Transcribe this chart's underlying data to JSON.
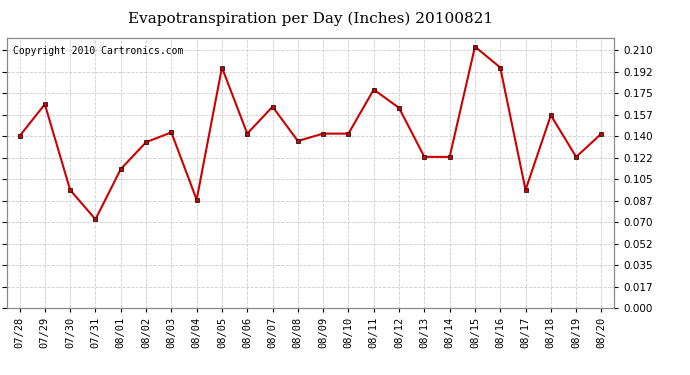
{
  "title": "Evapotranspiration per Day (Inches) 20100821",
  "copyright_text": "Copyright 2010 Cartronics.com",
  "x_labels": [
    "07/28",
    "07/29",
    "07/30",
    "07/31",
    "08/01",
    "08/02",
    "08/03",
    "08/04",
    "08/05",
    "08/06",
    "08/07",
    "08/08",
    "08/09",
    "08/10",
    "08/11",
    "08/12",
    "08/13",
    "08/14",
    "08/15",
    "08/16",
    "08/17",
    "08/18",
    "08/19",
    "08/20"
  ],
  "y_values": [
    0.14,
    0.166,
    0.096,
    0.072,
    0.113,
    0.135,
    0.143,
    0.088,
    0.196,
    0.142,
    0.164,
    0.136,
    0.142,
    0.142,
    0.178,
    0.163,
    0.123,
    0.123,
    0.213,
    0.196,
    0.096,
    0.157,
    0.123,
    0.142
  ],
  "line_color": "#cc0000",
  "marker": "s",
  "marker_size": 3,
  "line_width": 1.5,
  "ylim": [
    0.0,
    0.2205
  ],
  "yticks": [
    0.0,
    0.017,
    0.035,
    0.052,
    0.07,
    0.087,
    0.105,
    0.122,
    0.14,
    0.157,
    0.175,
    0.192,
    0.21
  ],
  "background_color": "#ffffff",
  "plot_bg_color": "#ffffff",
  "grid_color": "#cccccc",
  "title_fontsize": 11,
  "copyright_fontsize": 7,
  "tick_fontsize": 7.5
}
